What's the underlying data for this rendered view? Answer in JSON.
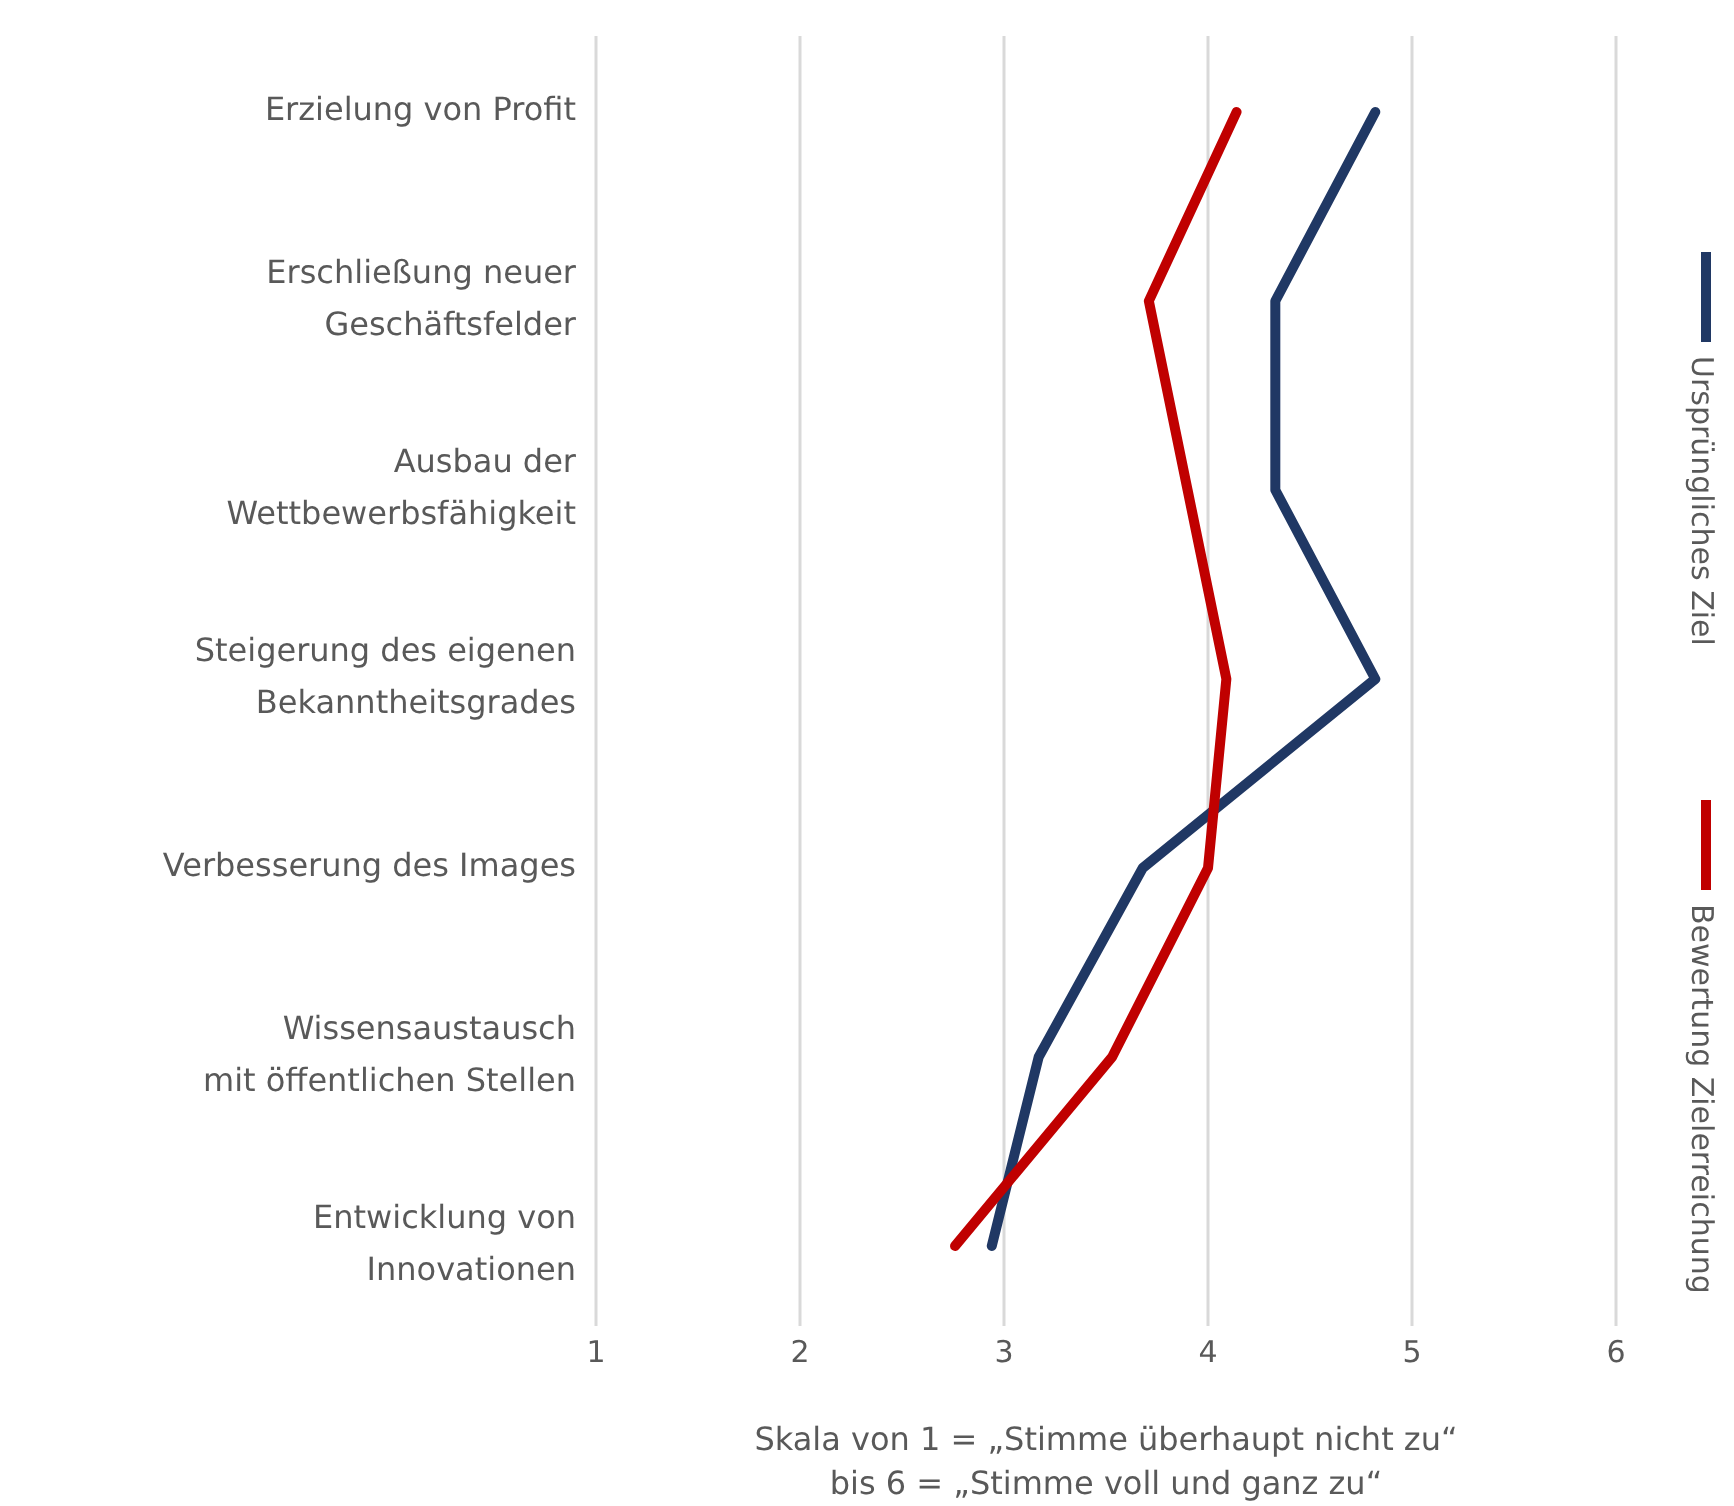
{
  "chart_data": {
    "type": "line",
    "orientation": "horizontal",
    "categories": [
      "Erzielung von Profit",
      "Erschließung neuer\nGeschäftsfelder",
      "Ausbau der\nWettbewerbsfähigkeit",
      "Steigerung des eigenen\nBekanntheitsgrades",
      "Verbesserung des Images",
      "Wissensaustausch\nmit öffentlichen Stellen",
      "Entwicklung von\nInnovationen"
    ],
    "series": [
      {
        "name": "Ursprüngliches Ziel",
        "color": "#203864",
        "values": [
          4.82,
          4.33,
          4.33,
          4.82,
          3.68,
          3.17,
          2.94
        ]
      },
      {
        "name": "Bewertung Zielerreichung",
        "color": "#c00000",
        "values": [
          4.14,
          3.71,
          3.9,
          4.09,
          4.0,
          3.53,
          2.76
        ]
      }
    ],
    "xlim": [
      1,
      6
    ],
    "xticks": [
      1,
      2,
      3,
      4,
      5,
      6
    ],
    "grid": "x",
    "legend": "right",
    "line_style": "solid",
    "xlabel": "Skala von 1 = „Stimme überhaupt nicht zu“\nbis 6 = „Stimme voll und ganz zu“"
  }
}
